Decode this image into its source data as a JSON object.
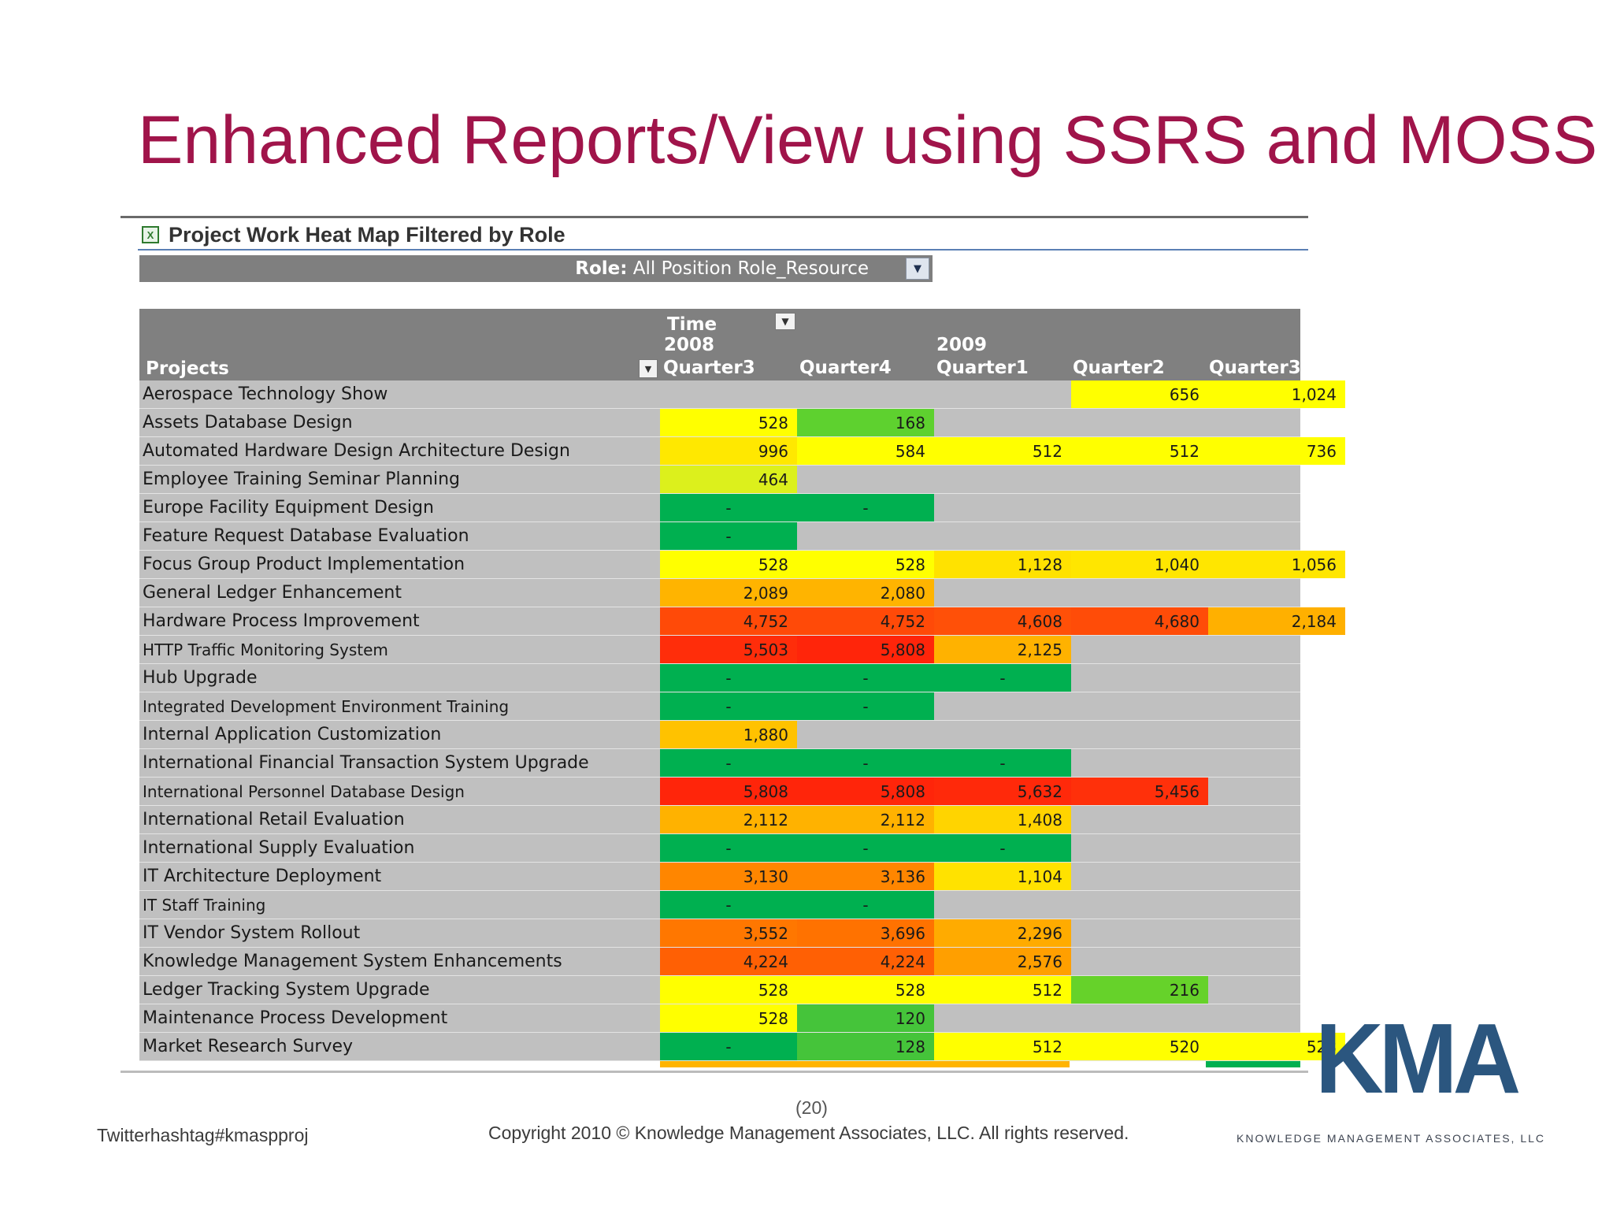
{
  "title": "Enhanced Reports/View using SSRS and MOSS",
  "web_part": {
    "icon": "excel-sheet-icon",
    "title": "Project Work Heat Map Filtered by Role"
  },
  "filter": {
    "label": "Role:",
    "value": "All Position Role_Resource",
    "icon": "dropdown-arrow-icon"
  },
  "table": {
    "row_header": "Projects",
    "time_label": "Time",
    "year_2008": "2008",
    "year_2009": "2009",
    "columns": [
      "Quarter3",
      "Quarter4",
      "Quarter1",
      "Quarter2",
      "Quarter3"
    ],
    "rows": [
      {
        "project": "Aerospace Technology Show",
        "values": [
          "",
          "",
          "",
          "656",
          "1,024"
        ],
        "colors": [
          "",
          "",
          "",
          "#ffff00",
          "#ffff00"
        ]
      },
      {
        "project": "Assets Database Design",
        "values": [
          "528",
          "168",
          "",
          "",
          ""
        ],
        "colors": [
          "#ffff00",
          "#5ed12f",
          "",
          "",
          ""
        ]
      },
      {
        "project": "Automated Hardware Design Architecture Design",
        "values": [
          "996",
          "584",
          "512",
          "512",
          "736"
        ],
        "colors": [
          "#ffe800",
          "#ffff00",
          "#ffff00",
          "#ffff00",
          "#ffff00"
        ]
      },
      {
        "project": "Employee Training Seminar Planning",
        "values": [
          "464",
          "",
          "",
          "",
          ""
        ],
        "colors": [
          "#dcf01c",
          "",
          "",
          "",
          ""
        ]
      },
      {
        "project": "Europe Facility Equipment Design",
        "values": [
          "-",
          "-",
          "",
          "",
          ""
        ],
        "colors": [
          "#00b050",
          "#00b050",
          "",
          "",
          ""
        ]
      },
      {
        "project": "Feature Request Database Evaluation",
        "values": [
          "-",
          "",
          "",
          "",
          ""
        ],
        "colors": [
          "#00b050",
          "",
          "",
          "",
          ""
        ]
      },
      {
        "project": "Focus Group Product Implementation",
        "values": [
          "528",
          "528",
          "1,128",
          "1,040",
          "1,056"
        ],
        "colors": [
          "#ffff00",
          "#ffff00",
          "#ffe200",
          "#ffe600",
          "#ffe600"
        ]
      },
      {
        "project": "General Ledger Enhancement",
        "values": [
          "2,089",
          "2,080",
          "",
          "",
          ""
        ],
        "colors": [
          "#ffb400",
          "#ffb400",
          "",
          "",
          ""
        ]
      },
      {
        "project": "Hardware Process Improvement",
        "values": [
          "4,752",
          "4,752",
          "4,608",
          "4,680",
          "2,184"
        ],
        "colors": [
          "#ff4a08",
          "#ff4a08",
          "#ff5008",
          "#ff4c08",
          "#ffb000"
        ]
      },
      {
        "project": "HTTP Traffic Monitoring System",
        "values": [
          "5,503",
          "5,808",
          "2,125",
          "",
          ""
        ],
        "colors": [
          "#ff2d0a",
          "#ff250a",
          "#ffb200",
          "",
          ""
        ]
      },
      {
        "project": "Hub Upgrade",
        "values": [
          "-",
          "-",
          "-",
          "",
          ""
        ],
        "colors": [
          "#00b050",
          "#00b050",
          "#00b050",
          "",
          ""
        ]
      },
      {
        "project": "Integrated Development Environment Training",
        "values": [
          "-",
          "-",
          "",
          "",
          ""
        ],
        "colors": [
          "#00b050",
          "#00b050",
          "",
          "",
          ""
        ]
      },
      {
        "project": "Internal Application Customization",
        "values": [
          "1,880",
          "",
          "",
          "",
          ""
        ],
        "colors": [
          "#ffc200",
          "",
          "",
          "",
          ""
        ]
      },
      {
        "project": "International Financial Transaction System Upgrade",
        "values": [
          "-",
          "-",
          "-",
          "",
          ""
        ],
        "colors": [
          "#00b050",
          "#00b050",
          "#00b050",
          "",
          ""
        ]
      },
      {
        "project": "International Personnel Database Design",
        "values": [
          "5,808",
          "5,808",
          "5,632",
          "5,456",
          ""
        ],
        "colors": [
          "#ff250a",
          "#ff250a",
          "#ff290a",
          "#ff300a",
          ""
        ]
      },
      {
        "project": "International Retail Evaluation",
        "values": [
          "2,112",
          "2,112",
          "1,408",
          "",
          ""
        ],
        "colors": [
          "#ffb200",
          "#ffb200",
          "#ffd400",
          "",
          ""
        ]
      },
      {
        "project": "International Supply Evaluation",
        "values": [
          "-",
          "-",
          "-",
          "",
          ""
        ],
        "colors": [
          "#00b050",
          "#00b050",
          "#00b050",
          "",
          ""
        ]
      },
      {
        "project": "IT Architecture Deployment",
        "values": [
          "3,130",
          "3,136",
          "1,104",
          "",
          ""
        ],
        "colors": [
          "#ff8600",
          "#ff8600",
          "#ffe200",
          "",
          ""
        ]
      },
      {
        "project": "IT Staff Training",
        "values": [
          "-",
          "-",
          "",
          "",
          ""
        ],
        "colors": [
          "#00b050",
          "#00b050",
          "",
          "",
          ""
        ]
      },
      {
        "project": "IT Vendor System Rollout",
        "values": [
          "3,552",
          "3,696",
          "2,296",
          "",
          ""
        ],
        "colors": [
          "#ff7700",
          "#ff7200",
          "#ffab00",
          "",
          ""
        ]
      },
      {
        "project": "Knowledge Management System Enhancements",
        "values": [
          "4,224",
          "4,224",
          "2,576",
          "",
          ""
        ],
        "colors": [
          "#ff6004",
          "#ff6004",
          "#ff9f00",
          "",
          ""
        ]
      },
      {
        "project": "Ledger Tracking System Upgrade",
        "values": [
          "528",
          "528",
          "512",
          "216",
          ""
        ],
        "colors": [
          "#ffff00",
          "#ffff00",
          "#ffff00",
          "#66d22a",
          ""
        ]
      },
      {
        "project": "Maintenance Process Development",
        "values": [
          "528",
          "120",
          "",
          "",
          ""
        ],
        "colors": [
          "#ffff00",
          "#45c43a",
          "",
          "",
          ""
        ]
      },
      {
        "project": "Market Research Survey",
        "values": [
          "-",
          "128",
          "512",
          "520",
          "528"
        ],
        "colors": [
          "#00b050",
          "#45c43a",
          "#ffff00",
          "#ffff00",
          "#ffff00"
        ]
      }
    ]
  },
  "footer": {
    "page_number": "(20)",
    "hashtag": "Twitterhashtag#kmaspproj",
    "copyright": "Copyright 2010 © Knowledge Management Associates, LLC.  All rights reserved."
  },
  "logo": {
    "letters": "KMA",
    "company": "KNOWLEDGE MANAGEMENT ASSOCIATES, LLC",
    "color": "#2b567f"
  }
}
